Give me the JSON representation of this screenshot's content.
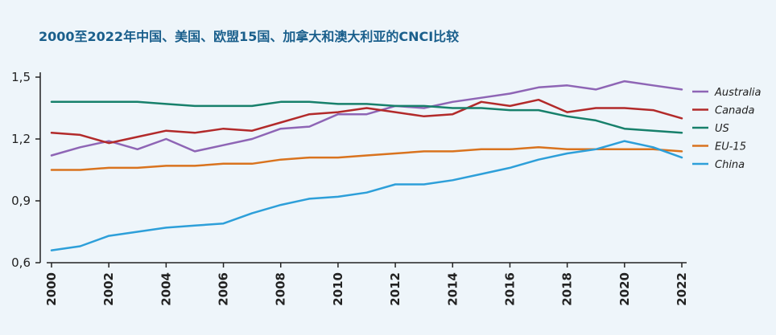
{
  "chart_data": {
    "type": "line",
    "title": "2000至2022年中国、美国、欧盟15国、加拿大和澳大利亚的CNCI比较",
    "xlabel": "",
    "ylabel": "",
    "x": [
      2000,
      2001,
      2002,
      2003,
      2004,
      2005,
      2006,
      2007,
      2008,
      2009,
      2010,
      2011,
      2012,
      2013,
      2014,
      2015,
      2016,
      2017,
      2018,
      2019,
      2020,
      2021,
      2022
    ],
    "xticks": [
      "2000",
      "2002",
      "2004",
      "2006",
      "2008",
      "2010",
      "2012",
      "2014",
      "2016",
      "2018",
      "2020",
      "2022"
    ],
    "yticks": [
      "0,6",
      "0,9",
      "1,2",
      "1,5"
    ],
    "ylim": [
      0.6,
      1.5
    ],
    "grid": false,
    "legend_position": "right",
    "series": [
      {
        "name": "Australia",
        "color": "#8e65b5",
        "values": [
          1.12,
          1.16,
          1.19,
          1.15,
          1.2,
          1.14,
          1.17,
          1.2,
          1.25,
          1.26,
          1.32,
          1.32,
          1.36,
          1.35,
          1.38,
          1.4,
          1.42,
          1.45,
          1.46,
          1.44,
          1.48,
          1.46,
          1.44
        ]
      },
      {
        "name": "Canada",
        "color": "#b22a2a",
        "values": [
          1.23,
          1.22,
          1.18,
          1.21,
          1.24,
          1.23,
          1.25,
          1.24,
          1.28,
          1.32,
          1.33,
          1.35,
          1.33,
          1.31,
          1.32,
          1.38,
          1.36,
          1.39,
          1.33,
          1.35,
          1.35,
          1.34,
          1.3
        ]
      },
      {
        "name": "US",
        "color": "#17806b",
        "values": [
          1.38,
          1.38,
          1.38,
          1.38,
          1.37,
          1.36,
          1.36,
          1.36,
          1.38,
          1.38,
          1.37,
          1.37,
          1.36,
          1.36,
          1.35,
          1.35,
          1.34,
          1.34,
          1.31,
          1.29,
          1.25,
          1.24,
          1.23
        ]
      },
      {
        "name": "EU-15",
        "color": "#d9731e",
        "values": [
          1.05,
          1.05,
          1.06,
          1.06,
          1.07,
          1.07,
          1.08,
          1.08,
          1.1,
          1.11,
          1.11,
          1.12,
          1.13,
          1.14,
          1.14,
          1.15,
          1.15,
          1.16,
          1.15,
          1.15,
          1.15,
          1.15,
          1.14
        ]
      },
      {
        "name": "China",
        "color": "#2d9fd9",
        "values": [
          0.66,
          0.68,
          0.73,
          0.75,
          0.77,
          0.78,
          0.79,
          0.84,
          0.88,
          0.91,
          0.92,
          0.94,
          0.98,
          0.98,
          1.0,
          1.03,
          1.06,
          1.1,
          1.13,
          1.15,
          1.19,
          1.16,
          1.11
        ]
      }
    ]
  }
}
